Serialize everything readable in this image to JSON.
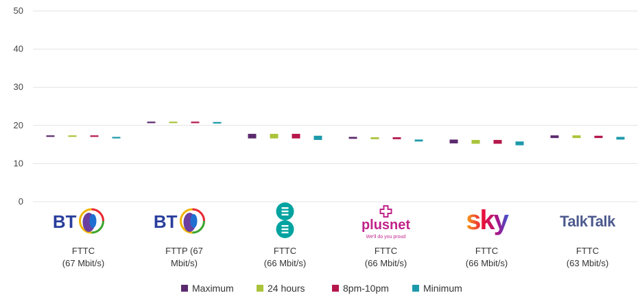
{
  "chart_data": {
    "type": "bar",
    "title": "",
    "xlabel": "",
    "ylabel": "",
    "ylim": [
      0,
      50
    ],
    "yticks": [
      0,
      10,
      20,
      30,
      40,
      50
    ],
    "grid": "horizontal",
    "legend_position": "bottom",
    "categories": [
      {
        "provider": "BT",
        "line1": "FTTC",
        "line2": "(67 Mbit/s)",
        "logo_text": "BT",
        "logo_icon": "bt-globe-icon"
      },
      {
        "provider": "BT",
        "line1": "FTTP (67",
        "line2": "Mbit/s)",
        "logo_text": "BT",
        "logo_icon": "bt-globe-icon"
      },
      {
        "provider": "EE",
        "line1": "FTTC",
        "line2": "(66 Mbit/s)",
        "logo_text": "E E",
        "logo_icon": "ee-logo-icon"
      },
      {
        "provider": "Plusnet",
        "line1": "FTTC",
        "line2": "(66 Mbit/s)",
        "logo_text": "plusnet",
        "logo_tagline": "We'll do you proud",
        "logo_icon": "plusnet-cross-icon"
      },
      {
        "provider": "Sky",
        "line1": "FTTC",
        "line2": "(66 Mbit/s)",
        "logo_text": "sky",
        "logo_icon": "sky-logo-icon"
      },
      {
        "provider": "TalkTalk",
        "line1": "FTTC",
        "line2": "(63 Mbit/s)",
        "logo_text": "TalkTalk",
        "logo_icon": "talktalk-logo-icon"
      }
    ],
    "series": [
      {
        "name": "Maximum",
        "color": "#5b2a6e",
        "values": [
          [
            17.0,
            17.4
          ],
          [
            20.6,
            21.0
          ],
          [
            16.6,
            17.8
          ],
          [
            16.5,
            17.0
          ],
          [
            15.3,
            16.3
          ],
          [
            16.7,
            17.4
          ]
        ]
      },
      {
        "name": "24 hours",
        "color": "#a9c43a",
        "values": [
          [
            17.0,
            17.4
          ],
          [
            20.6,
            21.0
          ],
          [
            16.6,
            17.8
          ],
          [
            16.4,
            16.9
          ],
          [
            15.2,
            16.2
          ],
          [
            16.7,
            17.4
          ]
        ]
      },
      {
        "name": "8pm-10pm",
        "color": "#b5174a",
        "values": [
          [
            17.0,
            17.4
          ],
          [
            20.6,
            21.0
          ],
          [
            16.6,
            17.8
          ],
          [
            16.4,
            16.9
          ],
          [
            15.2,
            16.2
          ],
          [
            16.7,
            17.3
          ]
        ]
      },
      {
        "name": "Minimum",
        "color": "#1c9aaa",
        "values": [
          [
            16.6,
            17.0
          ],
          [
            20.5,
            20.9
          ],
          [
            16.2,
            17.3
          ],
          [
            15.8,
            16.3
          ],
          [
            14.8,
            15.8
          ],
          [
            16.3,
            17.0
          ]
        ]
      }
    ]
  }
}
